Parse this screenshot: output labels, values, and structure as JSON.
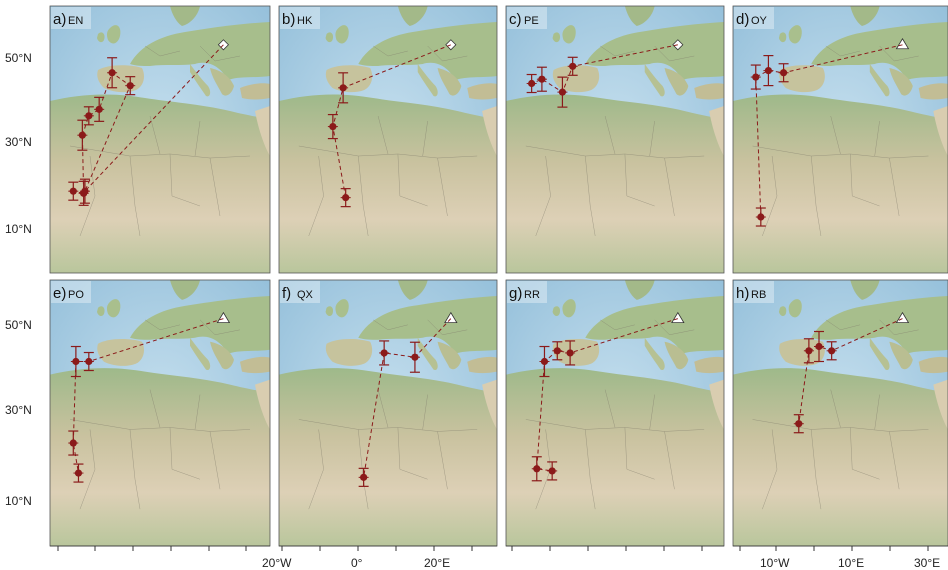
{
  "figure": {
    "y_axis_labels_top": [
      "50°N",
      "30°N",
      "10°N"
    ],
    "y_axis_labels_bottom": [
      "50°N",
      "30°N",
      "10°N"
    ],
    "x_axis_labels_col2": [
      "20°W",
      "0°",
      "20°E"
    ],
    "x_axis_labels_col4": [
      "10°W",
      "10°E",
      "30°E"
    ]
  },
  "colors": {
    "route": "#8b1a1a",
    "sea": "#a9cde2",
    "land": "#d8cdb3",
    "veg": "#9fba8a"
  },
  "panels": [
    {
      "letter": "a)",
      "code": "EN",
      "breeding_marker": "diamond",
      "points": [
        [
          -31,
          17
        ],
        [
          -27,
          16.5
        ],
        [
          -27.5,
          30
        ],
        [
          -25,
          34.5
        ],
        [
          -21,
          36
        ],
        [
          -16,
          44.5
        ],
        [
          -9,
          41.5
        ],
        [
          -26.5,
          17
        ]
      ]
    },
    {
      "letter": "b)",
      "code": "HK",
      "breeding_marker": "diamond",
      "points": [
        [
          -14,
          15.5
        ],
        [
          -19,
          32
        ],
        [
          -15,
          41
        ]
      ]
    },
    {
      "letter": "c)",
      "code": "PE",
      "breeding_marker": "diamond",
      "points": [
        [
          -30,
          42
        ],
        [
          -26,
          43
        ],
        [
          -18,
          40
        ],
        [
          -14,
          46
        ]
      ]
    },
    {
      "letter": "d)",
      "code": "OY",
      "breeding_marker": "triangle",
      "points": [
        [
          -29,
          11
        ],
        [
          -31,
          43.5
        ],
        [
          -26,
          45
        ],
        [
          -20,
          44.5
        ]
      ]
    },
    {
      "letter": "e)",
      "code": "PO",
      "breeding_marker": "triangle",
      "points": [
        [
          -29,
          15
        ],
        [
          -31,
          22
        ],
        [
          -30,
          41
        ],
        [
          -25,
          41
        ]
      ]
    },
    {
      "letter": "f)",
      "code": "QX",
      "breeding_marker": "triangle",
      "points": [
        [
          -7,
          14
        ],
        [
          1,
          43
        ],
        [
          13,
          42
        ]
      ]
    },
    {
      "letter": "g)",
      "code": "RR",
      "breeding_marker": "triangle",
      "points": [
        [
          -22,
          15.5
        ],
        [
          -28,
          16
        ],
        [
          -25,
          41
        ],
        [
          -20,
          43.5
        ],
        [
          -15,
          43
        ]
      ]
    },
    {
      "letter": "h)",
      "code": "RB",
      "breeding_marker": "triangle",
      "points": [
        [
          -14,
          26.5
        ],
        [
          -10,
          43.5
        ],
        [
          -6,
          44.5
        ],
        [
          -1,
          43.5
        ]
      ]
    }
  ]
}
